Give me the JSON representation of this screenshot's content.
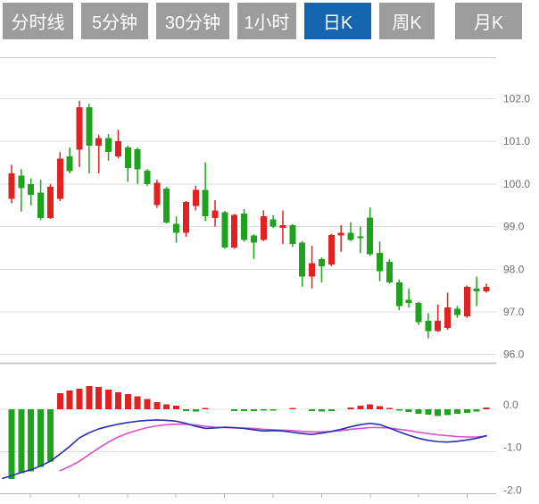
{
  "tabs": {
    "active_index": 4,
    "items": [
      {
        "label": "分时线"
      },
      {
        "label": "5分钟"
      },
      {
        "label": "30分钟"
      },
      {
        "label": "1小时"
      },
      {
        "label": "日K"
      },
      {
        "label": "周K"
      },
      {
        "label": "月K"
      }
    ]
  },
  "colors": {
    "up_candle_red": "#e02222",
    "down_candle_green": "#1fa31f",
    "dif_line_blue": "#2730ae",
    "dea_line_magenta": "#d84fce",
    "grid_line": "#dcdcdc",
    "panel_border": "#c9c9c9",
    "axis_text": "#6f6f6f",
    "tab_bg": "#9c9c9c",
    "tab_active_bg": "#1565b0",
    "tab_text": "#ffffff"
  },
  "chart_data": {
    "type": "candlestick",
    "legend": false,
    "grid": "horizontal-only",
    "price_axis_side": "right",
    "panels": [
      {
        "name": "price-panel",
        "ylim": [
          95.8,
          102.3
        ],
        "y_ticks": [
          {
            "label": "102.0",
            "value": 102.0
          },
          {
            "label": "101.0",
            "value": 101.0
          },
          {
            "label": "100.0",
            "value": 100.0
          },
          {
            "label": "99.0",
            "value": 99.0
          },
          {
            "label": "98.0",
            "value": 98.0
          },
          {
            "label": "97.0",
            "value": 97.0
          },
          {
            "label": "96.0",
            "value": 96.0
          }
        ],
        "candles_format": [
          "high",
          "body_top",
          "body_bottom",
          "low",
          "color r=red(up) g=green(down)"
        ],
        "candles": [
          [
            100.45,
            100.25,
            99.65,
            99.55,
            "r"
          ],
          [
            100.35,
            100.2,
            99.9,
            99.35,
            "g"
          ],
          [
            100.13,
            100.0,
            99.75,
            99.5,
            "g"
          ],
          [
            100.1,
            99.8,
            99.2,
            99.15,
            "g"
          ],
          [
            100.0,
            99.93,
            99.2,
            99.18,
            "r"
          ],
          [
            100.75,
            100.6,
            99.65,
            99.6,
            "r"
          ],
          [
            100.86,
            100.65,
            100.3,
            100.25,
            "g"
          ],
          [
            101.95,
            101.8,
            100.8,
            100.4,
            "r"
          ],
          [
            101.88,
            101.8,
            100.9,
            100.25,
            "g"
          ],
          [
            101.15,
            101.08,
            100.9,
            100.25,
            "r"
          ],
          [
            101.17,
            101.08,
            100.75,
            100.55,
            "g"
          ],
          [
            101.27,
            101.0,
            100.65,
            100.6,
            "r"
          ],
          [
            100.9,
            100.86,
            100.38,
            100.05,
            "g"
          ],
          [
            100.85,
            100.82,
            100.34,
            100.0,
            "g"
          ],
          [
            100.35,
            100.31,
            100.0,
            99.95,
            "g"
          ],
          [
            100.1,
            100.03,
            99.51,
            99.44,
            "r"
          ],
          [
            99.93,
            99.89,
            99.1,
            99.07,
            "g"
          ],
          [
            99.24,
            99.07,
            98.86,
            98.62,
            "g"
          ],
          [
            99.6,
            99.58,
            98.86,
            98.76,
            "r"
          ],
          [
            99.96,
            99.86,
            99.48,
            99.38,
            "r"
          ],
          [
            100.51,
            99.86,
            99.24,
            99.13,
            "g"
          ],
          [
            99.62,
            99.38,
            99.2,
            99.0,
            "r"
          ],
          [
            99.37,
            99.34,
            98.51,
            98.48,
            "g"
          ],
          [
            99.3,
            99.27,
            98.51,
            98.48,
            "r"
          ],
          [
            99.41,
            99.31,
            98.69,
            98.65,
            "g"
          ],
          [
            98.82,
            98.79,
            98.62,
            98.24,
            "g"
          ],
          [
            99.38,
            99.24,
            98.69,
            98.66,
            "r"
          ],
          [
            99.27,
            99.17,
            99.0,
            98.97,
            "g"
          ],
          [
            99.38,
            99.03,
            98.97,
            98.59,
            "r"
          ],
          [
            99.06,
            99.03,
            98.59,
            98.52,
            "g"
          ],
          [
            98.66,
            98.62,
            97.83,
            97.59,
            "g"
          ],
          [
            98.55,
            98.14,
            97.83,
            97.55,
            "r"
          ],
          [
            98.28,
            98.24,
            98.07,
            97.69,
            "g"
          ],
          [
            98.83,
            98.8,
            98.11,
            98.07,
            "r"
          ],
          [
            99.03,
            98.86,
            98.79,
            98.41,
            "r"
          ],
          [
            99.1,
            98.86,
            98.69,
            98.66,
            "g"
          ],
          [
            99.0,
            98.77,
            98.73,
            98.38,
            "g"
          ],
          [
            99.45,
            99.21,
            98.35,
            98.31,
            "g"
          ],
          [
            98.65,
            98.38,
            97.95,
            97.72,
            "g"
          ],
          [
            98.24,
            98.17,
            97.69,
            97.66,
            "g"
          ],
          [
            97.76,
            97.69,
            97.14,
            97.04,
            "g"
          ],
          [
            97.55,
            97.28,
            97.21,
            97.1,
            "g"
          ],
          [
            97.24,
            97.21,
            96.76,
            96.69,
            "g"
          ],
          [
            96.97,
            96.79,
            96.55,
            96.38,
            "g"
          ],
          [
            97.17,
            96.79,
            96.55,
            96.53,
            "r"
          ],
          [
            97.45,
            97.1,
            96.62,
            96.58,
            "r"
          ],
          [
            97.14,
            97.07,
            96.93,
            96.86,
            "g"
          ],
          [
            97.62,
            97.59,
            96.9,
            96.86,
            "r"
          ],
          [
            97.83,
            97.55,
            97.48,
            97.14,
            "g"
          ],
          [
            97.66,
            97.59,
            97.48,
            97.45,
            "r"
          ]
        ]
      },
      {
        "name": "macd-panel",
        "ylim": [
          -2.1,
          0.3
        ],
        "y_ticks": [
          {
            "label": "0.0",
            "value": 0.0
          },
          {
            "label": "-1.0",
            "value": -1.0
          },
          {
            "label": "-2.0",
            "value": -2.0
          }
        ],
        "histogram": [
          -1.64,
          -1.5,
          -1.46,
          -1.35,
          -1.23,
          0.38,
          0.44,
          0.48,
          0.55,
          0.52,
          0.46,
          0.4,
          0.36,
          0.3,
          0.24,
          0.17,
          0.12,
          0.08,
          -0.04,
          -0.05,
          0.03,
          0.0,
          0.0,
          -0.04,
          -0.04,
          -0.04,
          -0.03,
          -0.03,
          0.0,
          0.03,
          0.0,
          -0.04,
          -0.05,
          -0.04,
          0.0,
          0.04,
          0.08,
          0.12,
          0.07,
          0.03,
          -0.03,
          -0.06,
          -0.1,
          -0.13,
          -0.16,
          -0.14,
          -0.11,
          -0.08,
          -0.05,
          0.04
        ],
        "dif_line": {
          "lead_point_value": -1.62,
          "values": [
            -1.56,
            -1.48,
            -1.42,
            -1.33,
            -1.22,
            -1.05,
            -0.87,
            -0.67,
            -0.55,
            -0.46,
            -0.4,
            -0.35,
            -0.31,
            -0.28,
            -0.26,
            -0.25,
            -0.26,
            -0.28,
            -0.33,
            -0.4,
            -0.45,
            -0.44,
            -0.42,
            -0.43,
            -0.45,
            -0.48,
            -0.51,
            -0.5,
            -0.51,
            -0.54,
            -0.57,
            -0.59,
            -0.56,
            -0.52,
            -0.47,
            -0.41,
            -0.36,
            -0.33,
            -0.36,
            -0.44,
            -0.53,
            -0.61,
            -0.68,
            -0.73,
            -0.76,
            -0.77,
            -0.75,
            -0.72,
            -0.68,
            -0.62
          ]
        },
        "dea_line": {
          "values": [
            null,
            null,
            null,
            null,
            null,
            -1.44,
            -1.34,
            -1.22,
            -1.06,
            -0.91,
            -0.77,
            -0.65,
            -0.56,
            -0.49,
            -0.43,
            -0.39,
            -0.36,
            -0.35,
            -0.35,
            -0.37,
            -0.4,
            -0.42,
            -0.43,
            -0.44,
            -0.44,
            -0.45,
            -0.47,
            -0.48,
            -0.49,
            -0.5,
            -0.52,
            -0.53,
            -0.53,
            -0.52,
            -0.5,
            -0.47,
            -0.45,
            -0.43,
            -0.43,
            -0.44,
            -0.47,
            -0.5,
            -0.54,
            -0.57,
            -0.6,
            -0.62,
            -0.64,
            -0.65,
            -0.65,
            -0.63
          ]
        }
      }
    ]
  }
}
